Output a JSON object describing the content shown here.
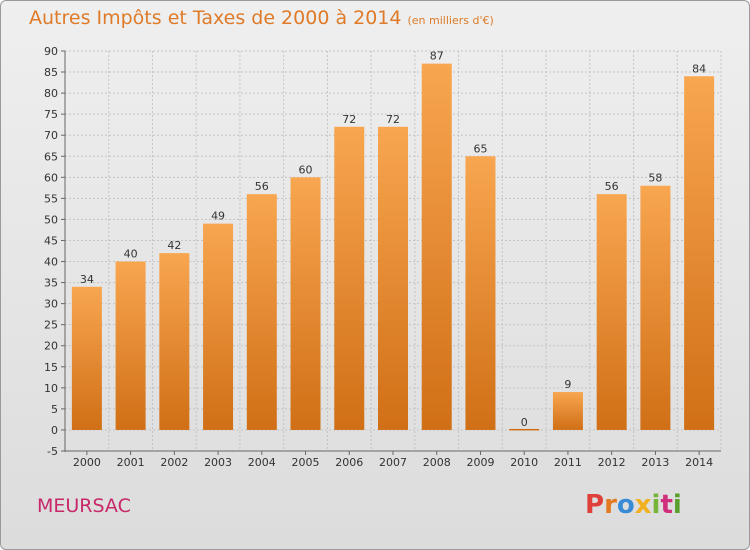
{
  "title": {
    "main": "Autres Impôts et Taxes de 2000 à 2014",
    "unit": "(en milliers d'€)"
  },
  "commune": "MEURSAC",
  "brand": "Proxiti",
  "colors": {
    "bar_top": "#f8a650",
    "bar_bottom": "#d06f16",
    "title": "#de7a28",
    "commune": "#c8286a",
    "logo": [
      "#e0403a",
      "#e37a22",
      "#3a8bd6",
      "#f0b020",
      "#79b43a",
      "#d12f7c",
      "#5aa02c"
    ]
  },
  "chart_data": {
    "type": "bar",
    "title": "Autres Impôts et Taxes de 2000 à 2014",
    "subtitle": "(en milliers d'€)",
    "categories": [
      "2000",
      "2001",
      "2002",
      "2003",
      "2004",
      "2005",
      "2006",
      "2007",
      "2008",
      "2009",
      "2010",
      "2011",
      "2012",
      "2013",
      "2014"
    ],
    "values": [
      34,
      40,
      42,
      49,
      56,
      60,
      72,
      72,
      87,
      65,
      0,
      9,
      56,
      58,
      84
    ],
    "data_labels": [
      "34",
      "40",
      "42",
      "49",
      "56",
      "60",
      "72",
      "72",
      "87",
      "65",
      "0",
      "9",
      "56",
      "58",
      "84"
    ],
    "ylim": [
      -5,
      90
    ],
    "yticks": [
      -5,
      0,
      5,
      10,
      15,
      20,
      25,
      30,
      35,
      40,
      45,
      50,
      55,
      60,
      65,
      70,
      75,
      80,
      85,
      90
    ],
    "xlabel": "",
    "ylabel": "",
    "grid": true,
    "legend": "none"
  }
}
